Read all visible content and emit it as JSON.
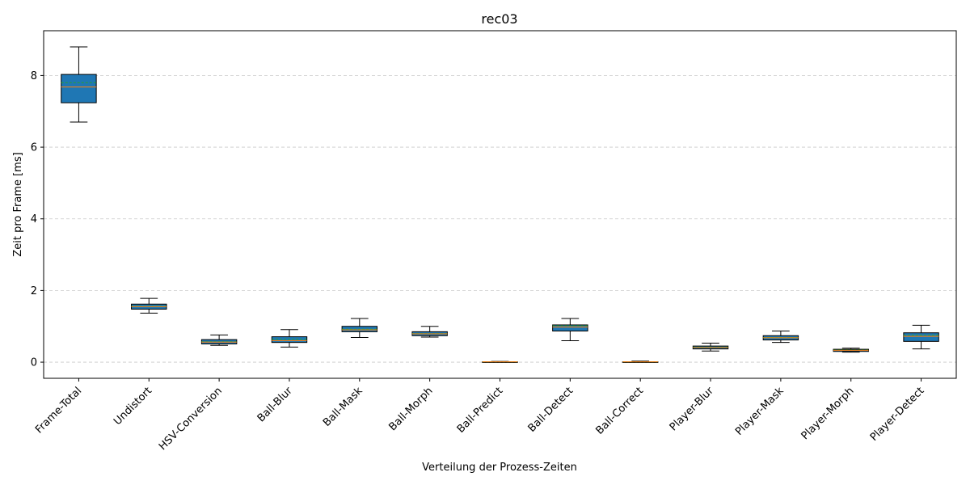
{
  "chart_data": {
    "type": "boxplot",
    "title": "rec03",
    "xlabel": "Verteilung der Prozess-Zeiten",
    "ylabel": "Zeit pro Frame [ms]",
    "ylim": [
      -0.45,
      9.25
    ],
    "yticks": [
      "0",
      "2",
      "4",
      "6",
      "8"
    ],
    "grid": "y-dashed",
    "categories": [
      "Frame-Total",
      "Undistort",
      "HSV-Conversion",
      "Ball-Blur",
      "Ball-Mask",
      "Ball-Morph",
      "Ball-Predict",
      "Ball-Detect",
      "Ball-Correct",
      "Player-Blur",
      "Player-Mask",
      "Player-Morph",
      "Player-Detect"
    ],
    "boxes": [
      {
        "whisker_low": 6.7,
        "q1": 7.24,
        "median": 7.68,
        "mean": 7.8,
        "q3": 8.03,
        "whisker_high": 8.8
      },
      {
        "whisker_low": 1.37,
        "q1": 1.48,
        "median": 1.55,
        "mean": 1.56,
        "q3": 1.62,
        "whisker_high": 1.78
      },
      {
        "whisker_low": 0.47,
        "q1": 0.51,
        "median": 0.56,
        "mean": 0.57,
        "q3": 0.63,
        "whisker_high": 0.76
      },
      {
        "whisker_low": 0.42,
        "q1": 0.55,
        "median": 0.6,
        "mean": 0.64,
        "q3": 0.71,
        "whisker_high": 0.91
      },
      {
        "whisker_low": 0.69,
        "q1": 0.85,
        "median": 0.9,
        "mean": 0.92,
        "q3": 1.0,
        "whisker_high": 1.22
      },
      {
        "whisker_low": 0.7,
        "q1": 0.74,
        "median": 0.79,
        "mean": 0.8,
        "q3": 0.85,
        "whisker_high": 1.0
      },
      {
        "whisker_low": 0.0,
        "q1": 0.0,
        "median": 0.01,
        "mean": 0.01,
        "q3": 0.01,
        "whisker_high": 0.02
      },
      {
        "whisker_low": 0.6,
        "q1": 0.87,
        "median": 0.98,
        "mean": 1.02,
        "q3": 1.04,
        "whisker_high": 1.22
      },
      {
        "whisker_low": 0.0,
        "q1": 0.0,
        "median": 0.01,
        "mean": 0.01,
        "q3": 0.01,
        "whisker_high": 0.03
      },
      {
        "whisker_low": 0.31,
        "q1": 0.37,
        "median": 0.41,
        "mean": 0.42,
        "q3": 0.45,
        "whisker_high": 0.53
      },
      {
        "whisker_low": 0.55,
        "q1": 0.62,
        "median": 0.68,
        "mean": 0.69,
        "q3": 0.74,
        "whisker_high": 0.87
      },
      {
        "whisker_low": 0.28,
        "q1": 0.3,
        "median": 0.33,
        "mean": 0.34,
        "q3": 0.36,
        "whisker_high": 0.39
      },
      {
        "whisker_low": 0.37,
        "q1": 0.58,
        "median": 0.72,
        "mean": 0.75,
        "q3": 0.82,
        "whisker_high": 1.03
      }
    ],
    "colors": {
      "box_fill": "#1f77b4",
      "box_edge": "#000000",
      "median": "#ff7f0e",
      "mean": "#2ca02c",
      "grid": "#c8c8c8"
    }
  }
}
